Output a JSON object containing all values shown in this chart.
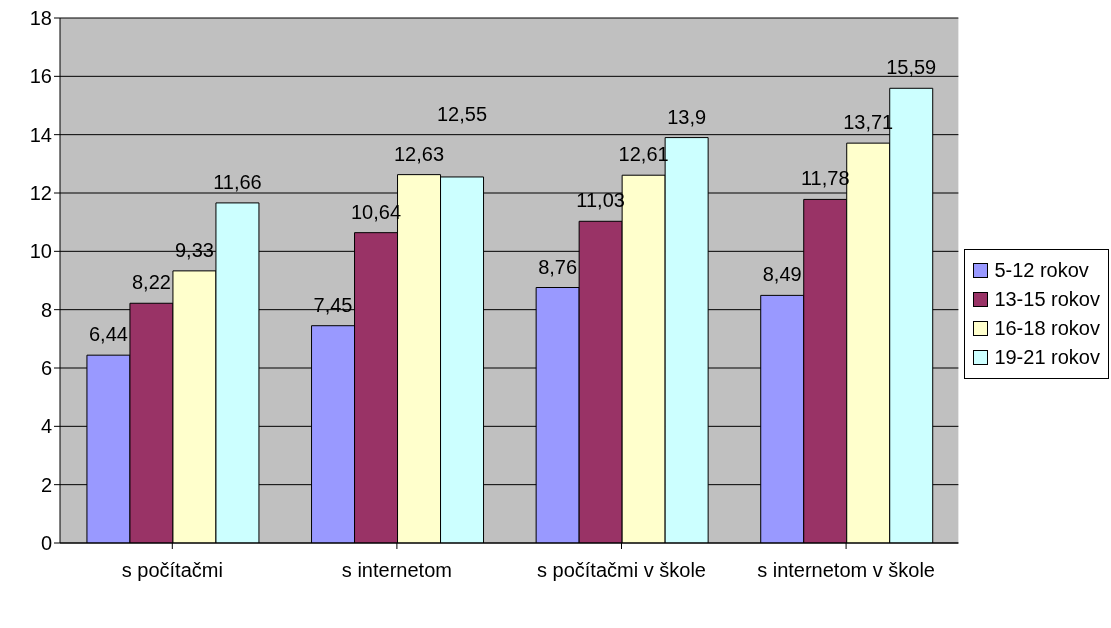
{
  "chart_data": {
    "type": "bar",
    "categories": [
      "s počítačmi",
      "s internetom",
      "s počítačmi v škole",
      "s internetom v škole"
    ],
    "series": [
      {
        "name": "5-12 rokov",
        "color": "#9999ff",
        "values": [
          6.44,
          7.45,
          8.76,
          8.49
        ],
        "value_labels": [
          "6,44",
          "7,45",
          "8,76",
          "8,49"
        ]
      },
      {
        "name": "13-15 rokov",
        "color": "#993366",
        "values": [
          8.22,
          10.64,
          11.03,
          11.78
        ],
        "value_labels": [
          "8,22",
          "10,64",
          "11,03",
          "11,78"
        ]
      },
      {
        "name": "16-18 rokov",
        "color": "#ffffcc",
        "values": [
          9.33,
          12.63,
          12.61,
          13.71
        ],
        "value_labels": [
          "9,33",
          "12,63",
          "12,61",
          "13,71"
        ]
      },
      {
        "name": "19-21 rokov",
        "color": "#ccffff",
        "values": [
          11.66,
          12.55,
          13.9,
          15.59
        ],
        "value_labels": [
          "11,66",
          "12,55",
          "13,9",
          "15,59"
        ]
      }
    ],
    "ylim": [
      0,
      18
    ],
    "yticks": [
      0,
      2,
      4,
      6,
      8,
      10,
      12,
      14,
      16,
      18
    ],
    "grid": "y",
    "legend": "right"
  }
}
